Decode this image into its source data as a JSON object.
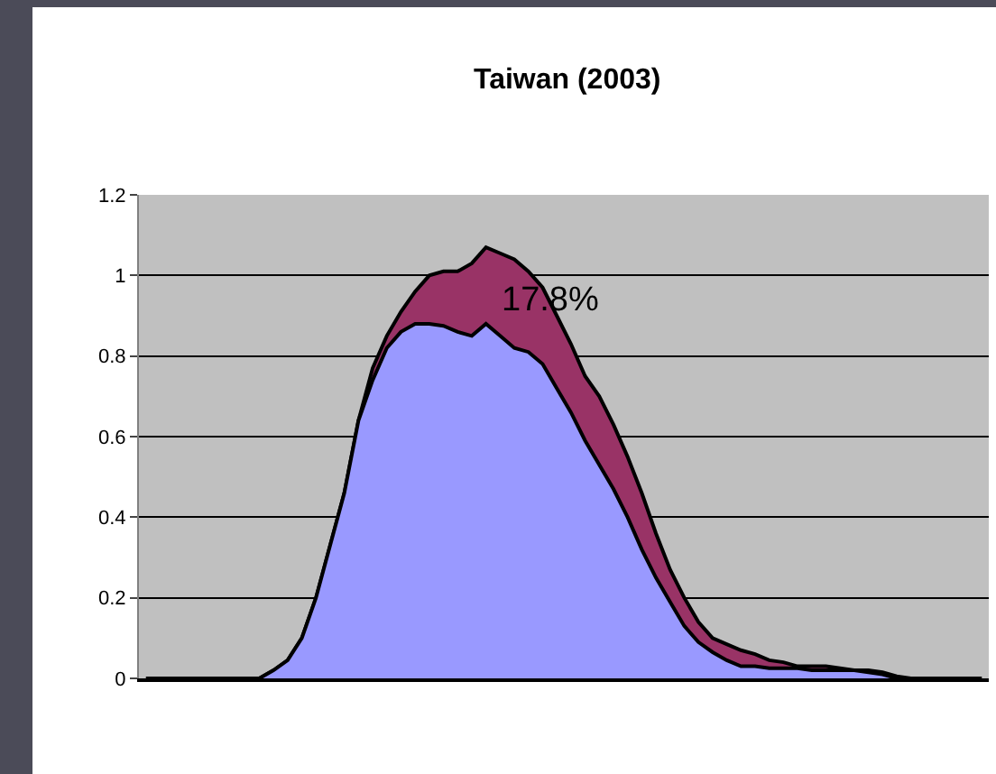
{
  "chart_data": {
    "type": "area",
    "title": "Taiwan (2003)",
    "categories": [
      null,
      null,
      null,
      null,
      null,
      null,
      null,
      null,
      null,
      null,
      null,
      null,
      null,
      null,
      null,
      null,
      null,
      null,
      null,
      null,
      null,
      null,
      null,
      null,
      null,
      null,
      null,
      null,
      null,
      null,
      null,
      null,
      null,
      null,
      null,
      null,
      null,
      null,
      null,
      null,
      null,
      null,
      null,
      null,
      null,
      null,
      null,
      null,
      null,
      null,
      null,
      null,
      null,
      null,
      null,
      null,
      null,
      null,
      null,
      null
    ],
    "series": [
      {
        "color": "#993366",
        "values": [
          0,
          0,
          0,
          0,
          0,
          0,
          0,
          0,
          0,
          0.02,
          0.045,
          0.1,
          0.2,
          0.33,
          0.46,
          0.64,
          0.77,
          0.85,
          0.91,
          0.96,
          1.0,
          1.01,
          1.01,
          1.03,
          1.07,
          1.055,
          1.04,
          1.01,
          0.97,
          0.9,
          0.83,
          0.75,
          0.7,
          0.63,
          0.55,
          0.46,
          0.36,
          0.27,
          0.2,
          0.14,
          0.1,
          0.085,
          0.07,
          0.06,
          0.045,
          0.04,
          0.03,
          0.03,
          0.03,
          0.025,
          0.02,
          0.02,
          0.015,
          0.005,
          0,
          0,
          0,
          0,
          0,
          0
        ]
      },
      {
        "color": "#9999ff",
        "values": [
          0,
          0,
          0,
          0,
          0,
          0,
          0,
          0,
          0,
          0.02,
          0.045,
          0.1,
          0.2,
          0.33,
          0.46,
          0.64,
          0.74,
          0.82,
          0.86,
          0.88,
          0.88,
          0.875,
          0.86,
          0.85,
          0.88,
          0.85,
          0.82,
          0.81,
          0.78,
          0.72,
          0.66,
          0.59,
          0.53,
          0.47,
          0.4,
          0.32,
          0.25,
          0.19,
          0.13,
          0.09,
          0.065,
          0.045,
          0.03,
          0.03,
          0.025,
          0.025,
          0.025,
          0.02,
          0.02,
          0.02,
          0.02,
          0.015,
          0.01,
          0,
          0,
          0,
          0,
          0,
          0,
          0
        ]
      }
    ],
    "ylim": [
      0,
      1.2
    ],
    "yticks": [
      0,
      0.2,
      0.4,
      0.6,
      0.8,
      1,
      1.2
    ],
    "grid": "y",
    "annotations": [
      "17.8%"
    ]
  }
}
